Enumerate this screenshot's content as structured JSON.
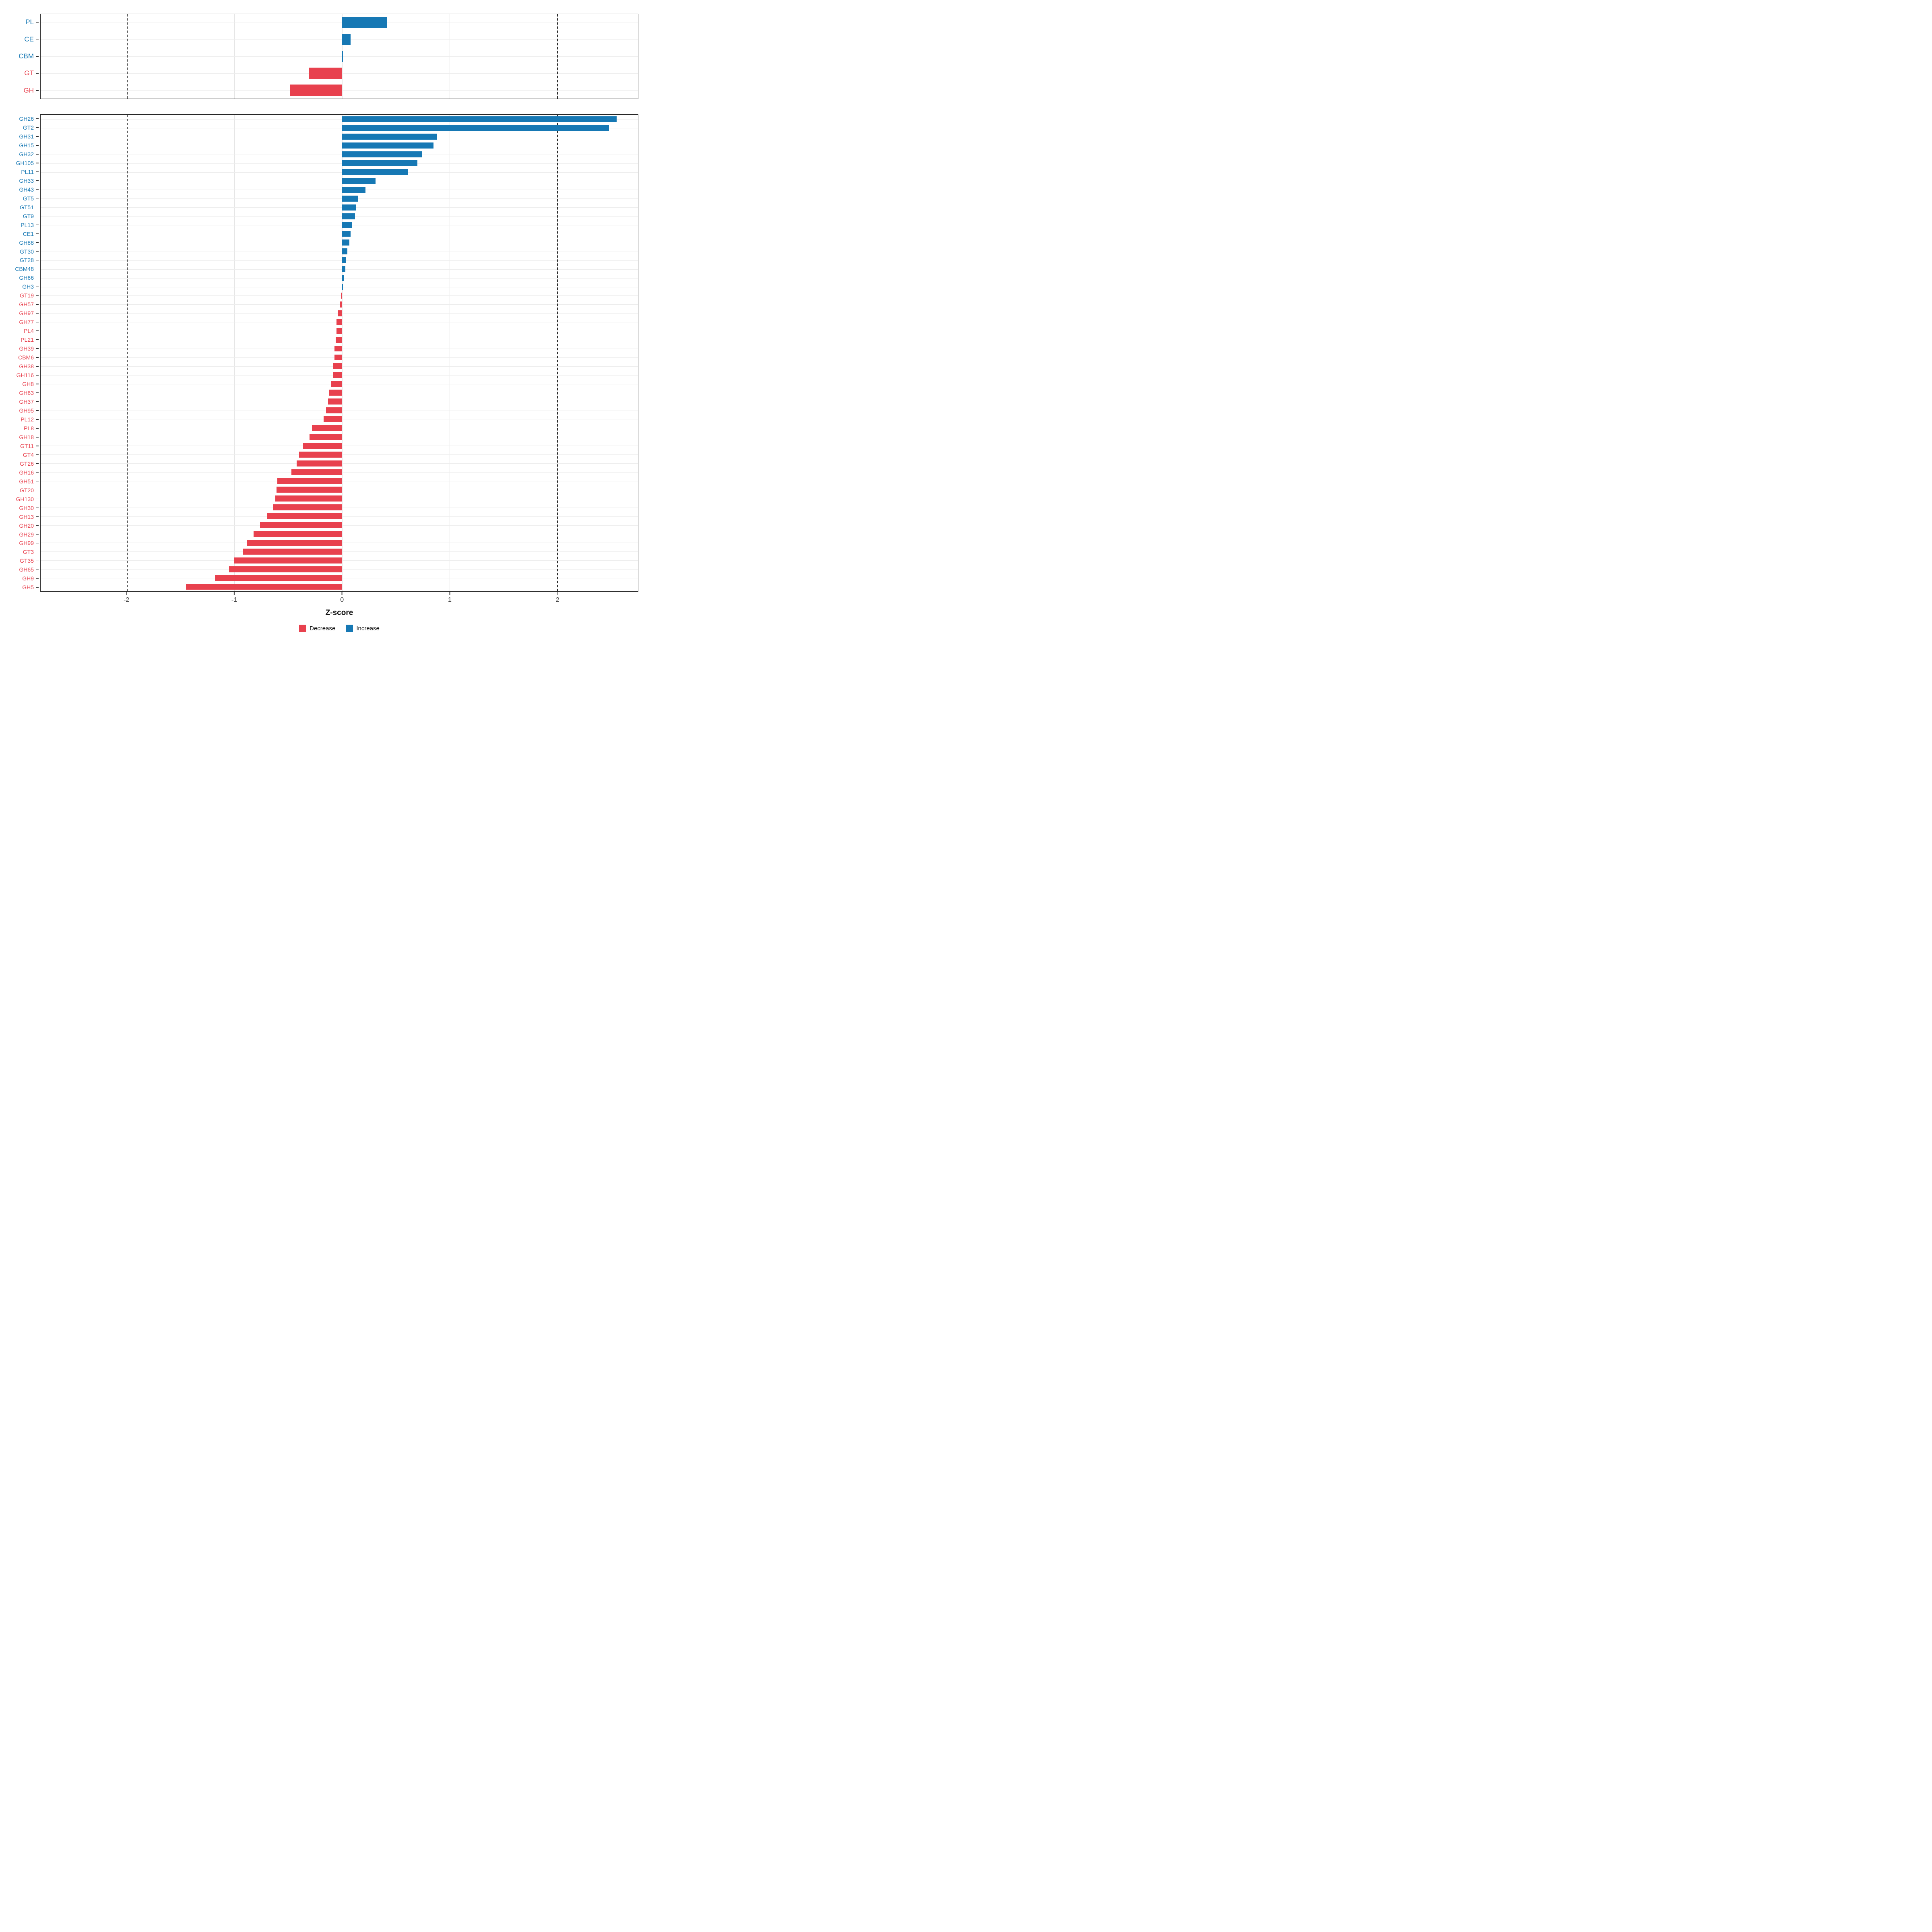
{
  "colors": {
    "increase": "#1678B4",
    "decrease": "#E8414E",
    "grid": "#e3e3e3",
    "dashed_line": "#2a2a2a"
  },
  "legend": {
    "items": [
      {
        "label": "Decrease",
        "color": "#E8414E"
      },
      {
        "label": "Increase",
        "color": "#1678B4"
      }
    ]
  },
  "xaxis": {
    "title": "Z-score",
    "tick_labels": [
      "-2",
      "-1",
      "0",
      "1",
      "2"
    ]
  },
  "chart_data": [
    {
      "type": "bar",
      "orientation": "horizontal",
      "panel": "cazyme-class-summary",
      "title": "",
      "xlabel": "Z-score",
      "ylabel": "",
      "xlim": [
        -2.8,
        2.75
      ],
      "x_ticks": [
        -2,
        -1,
        0,
        1,
        2
      ],
      "dashed_lines": [
        -2,
        2
      ],
      "grid": true,
      "legend_position": "bottom",
      "categories": [
        "PL",
        "CE",
        "CBM",
        "GT",
        "GH"
      ],
      "values": [
        0.42,
        0.08,
        0.01,
        -0.31,
        -0.48
      ]
    },
    {
      "type": "bar",
      "orientation": "horizontal",
      "panel": "cazyme-family-detail",
      "title": "",
      "xlabel": "Z-score",
      "ylabel": "",
      "xlim": [
        -2.8,
        2.75
      ],
      "x_ticks": [
        -2,
        -1,
        0,
        1,
        2
      ],
      "dashed_lines": [
        -2,
        2
      ],
      "grid": true,
      "categories": [
        "GH26",
        "GT2",
        "GH31",
        "GH15",
        "GH32",
        "GH105",
        "PL11",
        "GH33",
        "GH43",
        "GT5",
        "GT51",
        "GT9",
        "PL13",
        "CE1",
        "GH88",
        "GT30",
        "GT28",
        "CBM48",
        "GH66",
        "GH3",
        "GT19",
        "GH57",
        "GH97",
        "GH77",
        "PL4",
        "PL21",
        "GH39",
        "CBM6",
        "GH38",
        "GH116",
        "GH8",
        "GH63",
        "GH37",
        "GH95",
        "PL12",
        "PL8",
        "GH18",
        "GT11",
        "GT4",
        "GT26",
        "GH16",
        "GH51",
        "GT20",
        "GH130",
        "GH30",
        "GH13",
        "GH20",
        "GH29",
        "GH99",
        "GT3",
        "GT35",
        "GH65",
        "GH9",
        "GH5"
      ],
      "values": [
        2.55,
        2.48,
        0.88,
        0.85,
        0.74,
        0.7,
        0.61,
        0.31,
        0.22,
        0.15,
        0.13,
        0.12,
        0.09,
        0.08,
        0.07,
        0.05,
        0.04,
        0.03,
        0.02,
        0.01,
        -0.01,
        -0.02,
        -0.04,
        -0.05,
        -0.05,
        -0.06,
        -0.07,
        -0.07,
        -0.08,
        -0.08,
        -0.1,
        -0.12,
        -0.13,
        -0.15,
        -0.17,
        -0.28,
        -0.3,
        -0.36,
        -0.4,
        -0.42,
        -0.47,
        -0.6,
        -0.61,
        -0.62,
        -0.64,
        -0.7,
        -0.76,
        -0.82,
        -0.88,
        -0.92,
        -1.0,
        -1.05,
        -1.18,
        -1.45
      ]
    }
  ]
}
